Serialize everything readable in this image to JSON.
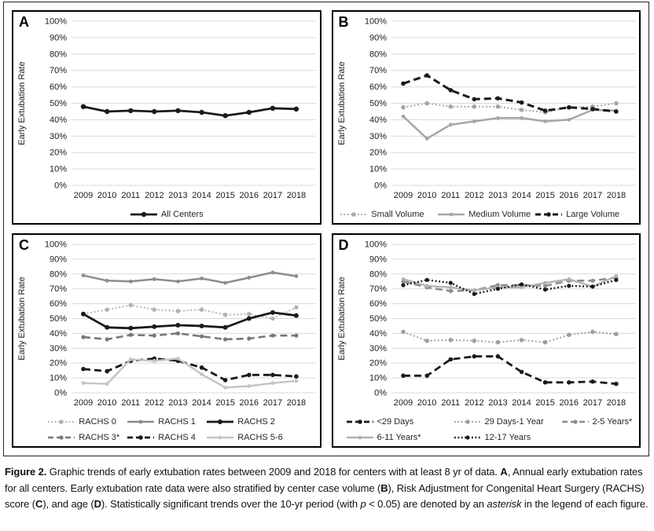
{
  "figure": {
    "y_axis_label": "Early Extubation Rate",
    "years": [
      "2009",
      "2010",
      "2011",
      "2012",
      "2013",
      "2014",
      "2015",
      "2016",
      "2017",
      "2018"
    ]
  },
  "chart_data": [
    {
      "panel": "A",
      "type": "line",
      "x": [
        "2009",
        "2010",
        "2011",
        "2012",
        "2013",
        "2014",
        "2015",
        "2016",
        "2017",
        "2018"
      ],
      "ylabel": "Early Extubation Rate",
      "ylim": [
        0,
        100
      ],
      "y_ticks": [
        "0%",
        "10%",
        "20%",
        "30%",
        "40%",
        "50%",
        "60%",
        "70%",
        "80%",
        "90%",
        "100%"
      ],
      "grid": true,
      "legend_position": "bottom",
      "series": [
        {
          "name": "All Centers",
          "values": [
            48,
            45,
            45.5,
            45,
            45.5,
            44.5,
            42.5,
            44.5,
            47,
            46.5
          ],
          "color": "#1a1a1a",
          "dash": "solid",
          "width": 2.8,
          "marker_r": 3.2,
          "legend_row": 0
        }
      ]
    },
    {
      "panel": "B",
      "type": "line",
      "x": [
        "2009",
        "2010",
        "2011",
        "2012",
        "2013",
        "2014",
        "2015",
        "2016",
        "2017",
        "2018"
      ],
      "ylabel": "Early Extubation Rate",
      "ylim": [
        0,
        100
      ],
      "y_ticks": [
        "0%",
        "10%",
        "20%",
        "30%",
        "40%",
        "50%",
        "60%",
        "70%",
        "80%",
        "90%",
        "100%"
      ],
      "grid": true,
      "legend_position": "bottom",
      "series": [
        {
          "name": "Small Volume",
          "values": [
            47.5,
            50,
            48,
            48,
            48,
            46,
            44.5,
            47.5,
            48,
            50
          ],
          "color": "#a6a6a6",
          "dash": "dot",
          "width": 2,
          "marker_r": 2.8,
          "legend_row": 0
        },
        {
          "name": "Medium Volume",
          "values": [
            42,
            28.5,
            37,
            39,
            41,
            41,
            39,
            40,
            46,
            45.5
          ],
          "color": "#a6a6a6",
          "dash": "solid",
          "width": 2.5,
          "marker_r": 2.4,
          "legend_row": 0
        },
        {
          "name": "Large Volume",
          "values": [
            62,
            67,
            58,
            52.5,
            53,
            50.5,
            45.5,
            47.5,
            46.5,
            45
          ],
          "color": "#1a1a1a",
          "dash": "dash",
          "width": 3,
          "marker_r": 2.8,
          "legend_row": 0
        }
      ]
    },
    {
      "panel": "C",
      "type": "line",
      "x": [
        "2009",
        "2010",
        "2011",
        "2012",
        "2013",
        "2014",
        "2015",
        "2016",
        "2017",
        "2018"
      ],
      "ylabel": "Early Extubation Rate",
      "ylim": [
        0,
        100
      ],
      "y_ticks": [
        "0%",
        "10%",
        "20%",
        "30%",
        "40%",
        "50%",
        "60%",
        "70%",
        "80%",
        "90%",
        "100%"
      ],
      "grid": true,
      "legend_position": "bottom",
      "series": [
        {
          "name": "RACHS 0",
          "values": [
            53,
            56,
            59,
            56,
            55,
            56,
            52.5,
            53,
            50,
            57.5
          ],
          "color": "#b3b3b3",
          "dash": "dot",
          "width": 2,
          "marker_r": 2.8,
          "legend_row": 0
        },
        {
          "name": "RACHS 1",
          "values": [
            79,
            75.5,
            75,
            76.5,
            75,
            77,
            74,
            77.5,
            81,
            78.5
          ],
          "color": "#8c8c8c",
          "dash": "solid",
          "width": 2.5,
          "marker_r": 2.4,
          "legend_row": 0
        },
        {
          "name": "RACHS 2",
          "values": [
            53,
            44,
            43.5,
            44.5,
            45.5,
            45,
            44,
            50,
            54,
            52
          ],
          "color": "#1a1a1a",
          "dash": "solid",
          "width": 2.8,
          "marker_r": 3,
          "legend_row": 0
        },
        {
          "name": "RACHS 3*",
          "values": [
            37.5,
            36,
            39,
            38.5,
            40,
            38,
            36,
            36.5,
            38.5,
            38.5
          ],
          "color": "#787878",
          "dash": "dash",
          "width": 2.6,
          "marker_r": 2.6,
          "legend_row": 1
        },
        {
          "name": "RACHS 4",
          "values": [
            16,
            14.5,
            21.5,
            23,
            21.5,
            17,
            8.5,
            12,
            12,
            11
          ],
          "color": "#1a1a1a",
          "dash": "dash",
          "width": 2.8,
          "marker_r": 2.8,
          "legend_row": 1
        },
        {
          "name": "RACHS 5-6",
          "values": [
            6.5,
            6,
            22.5,
            21.5,
            23,
            12.5,
            3.5,
            4.5,
            6.5,
            8
          ],
          "color": "#c4c4c4",
          "dash": "solid",
          "width": 2.4,
          "marker_r": 2.4,
          "legend_row": 1
        }
      ]
    },
    {
      "panel": "D",
      "type": "line",
      "x": [
        "2009",
        "2010",
        "2011",
        "2012",
        "2013",
        "2014",
        "2015",
        "2016",
        "2017",
        "2018"
      ],
      "ylabel": "Early Extubation Rate",
      "ylim": [
        0,
        100
      ],
      "y_ticks": [
        "0%",
        "10%",
        "20%",
        "30%",
        "40%",
        "50%",
        "60%",
        "70%",
        "80%",
        "90%",
        "100%"
      ],
      "grid": true,
      "legend_position": "bottom",
      "series": [
        {
          "name": "<29 Days",
          "values": [
            11.5,
            11.5,
            22.5,
            24.5,
            24.5,
            14,
            7,
            7,
            7.5,
            6
          ],
          "color": "#1a1a1a",
          "dash": "dash",
          "width": 2.8,
          "marker_r": 2.8,
          "legend_row": 0
        },
        {
          "name": "29 Days-1 Year",
          "values": [
            41,
            35,
            35.5,
            35,
            34,
            35.5,
            34,
            39,
            41,
            39.5
          ],
          "color": "#9e9e9e",
          "dash": "dot",
          "width": 2,
          "marker_r": 2.8,
          "legend_row": 0
        },
        {
          "name": "2-5 Years*",
          "values": [
            75,
            71,
            68.5,
            69,
            72.5,
            72.5,
            72,
            75.5,
            75.5,
            77.5
          ],
          "color": "#8c8c8c",
          "dash": "dash",
          "width": 2.6,
          "marker_r": 2.6,
          "legend_row": 0
        },
        {
          "name": "6-11 Years*",
          "values": [
            76.5,
            72,
            71,
            69,
            71,
            71,
            74,
            76.5,
            71.5,
            78.5
          ],
          "color": "#b3b3b3",
          "dash": "solid",
          "width": 2.4,
          "marker_r": 2.4,
          "legend_row": 1
        },
        {
          "name": "12-17 Years",
          "values": [
            72.5,
            76,
            74,
            66.5,
            70,
            73,
            69.5,
            72,
            71.5,
            76
          ],
          "color": "#1a1a1a",
          "dash": "dot",
          "width": 2.4,
          "marker_r": 2.6,
          "legend_row": 1
        }
      ]
    }
  ],
  "caption": {
    "segments": [
      {
        "text": "Figure 2.",
        "bold": true
      },
      {
        "text": " Graphic trends of early extubation rates between 2009 and 2018 for centers with at least 8 yr of data. "
      },
      {
        "text": "A",
        "bold": true
      },
      {
        "text": ", Annual early extubation rates for all centers. Early extubation rate data were also stratified by center case volume ("
      },
      {
        "text": "B",
        "bold": true
      },
      {
        "text": "), Risk Adjustment for Congenital Heart Surgery (RACHS) score ("
      },
      {
        "text": "C",
        "bold": true
      },
      {
        "text": "), and age ("
      },
      {
        "text": "D",
        "bold": true
      },
      {
        "text": "). Statistically significant trends over the 10-yr period (with "
      },
      {
        "text": "p",
        "italic": true
      },
      {
        "text": " < 0.05) are denoted by an "
      },
      {
        "text": "asterisk",
        "italic": true
      },
      {
        "text": " in the legend of each figure."
      }
    ]
  }
}
